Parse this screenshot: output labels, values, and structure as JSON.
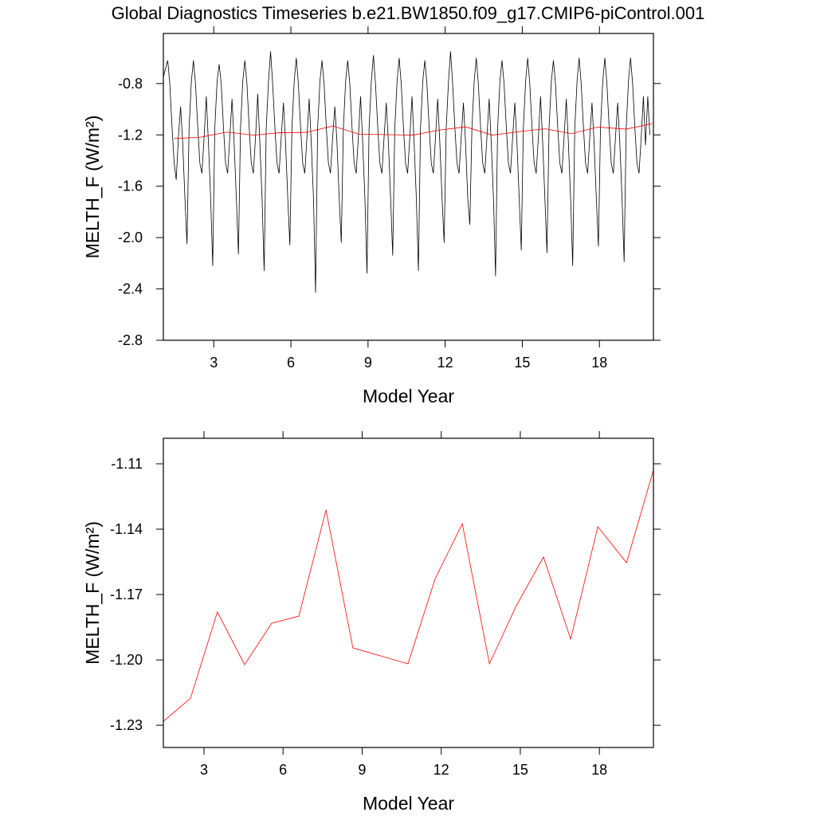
{
  "chart_data": [
    {
      "type": "line",
      "title": "Global Diagnostics Timeseries b.e21.BW1850.f09_g17.CMIP6-piControl.001",
      "x_label": "Model Year",
      "y_label": "MELTH_F (W/m²)",
      "xlim": [
        1.04,
        20.1
      ],
      "xticks": [
        3,
        6,
        9,
        12,
        15,
        18
      ],
      "ylim": [
        -2.8,
        -0.41
      ],
      "yticks": [
        -0.8,
        -1.2,
        -1.6,
        {
          "value": -2,
          "label": "-2.0"
        },
        -2.4,
        -2.8
      ],
      "series": [
        {
          "color": "#000000",
          "x": [
            1.04,
            1.13,
            1.21,
            1.29,
            1.38,
            1.46,
            1.54,
            1.63,
            1.71,
            1.79,
            1.88,
            1.96,
            2.04,
            2.13,
            2.21,
            2.29,
            2.38,
            2.46,
            2.54,
            2.63,
            2.71,
            2.79,
            2.88,
            2.96,
            3.04,
            3.13,
            3.21,
            3.29,
            3.38,
            3.46,
            3.54,
            3.63,
            3.71,
            3.79,
            3.88,
            3.96,
            4.04,
            4.13,
            4.21,
            4.29,
            4.38,
            4.46,
            4.54,
            4.63,
            4.71,
            4.79,
            4.88,
            4.96,
            5.04,
            5.13,
            5.21,
            5.29,
            5.38,
            5.46,
            5.54,
            5.63,
            5.71,
            5.79,
            5.88,
            5.96,
            6.04,
            6.13,
            6.21,
            6.29,
            6.38,
            6.46,
            6.54,
            6.63,
            6.71,
            6.79,
            6.88,
            6.96,
            7.04,
            7.13,
            7.21,
            7.29,
            7.38,
            7.46,
            7.54,
            7.63,
            7.71,
            7.79,
            7.88,
            7.96,
            8.04,
            8.13,
            8.21,
            8.29,
            8.38,
            8.46,
            8.54,
            8.63,
            8.71,
            8.79,
            8.88,
            8.96,
            9.04,
            9.13,
            9.21,
            9.29,
            9.38,
            9.46,
            9.54,
            9.63,
            9.71,
            9.79,
            9.88,
            9.96,
            10.04,
            10.13,
            10.21,
            10.29,
            10.38,
            10.46,
            10.54,
            10.63,
            10.71,
            10.79,
            10.88,
            10.96,
            11.04,
            11.13,
            11.21,
            11.29,
            11.38,
            11.46,
            11.54,
            11.63,
            11.71,
            11.79,
            11.88,
            11.96,
            12.04,
            12.13,
            12.21,
            12.29,
            12.38,
            12.46,
            12.54,
            12.63,
            12.71,
            12.79,
            12.88,
            12.96,
            13.04,
            13.13,
            13.21,
            13.29,
            13.38,
            13.46,
            13.54,
            13.63,
            13.71,
            13.79,
            13.88,
            13.96,
            14.04,
            14.13,
            14.21,
            14.29,
            14.38,
            14.46,
            14.54,
            14.63,
            14.71,
            14.79,
            14.88,
            14.96,
            15.04,
            15.13,
            15.21,
            15.29,
            15.38,
            15.46,
            15.54,
            15.63,
            15.71,
            15.79,
            15.88,
            15.96,
            16.04,
            16.13,
            16.21,
            16.29,
            16.38,
            16.46,
            16.54,
            16.63,
            16.71,
            16.79,
            16.88,
            16.96,
            17.04,
            17.13,
            17.21,
            17.29,
            17.38,
            17.46,
            17.54,
            17.63,
            17.71,
            17.79,
            17.88,
            17.96,
            18.04,
            18.13,
            18.21,
            18.29,
            18.38,
            18.46,
            18.54,
            18.63,
            18.71,
            18.79,
            18.88,
            18.96,
            19.04,
            19.13,
            19.21,
            19.29,
            19.38,
            19.46,
            19.54,
            19.63,
            19.71,
            19.79,
            19.88,
            19.96
          ],
          "values": [
            -0.75,
            -0.68,
            -0.62,
            -0.8,
            -1.15,
            -1.42,
            -1.55,
            -1.2,
            -0.98,
            -1.25,
            -1.7,
            -2.05,
            -1.15,
            -0.78,
            -0.62,
            -0.8,
            -1.15,
            -1.42,
            -1.5,
            -1.2,
            -0.9,
            -1.25,
            -1.7,
            -2.22,
            -1.15,
            -0.78,
            -0.65,
            -0.8,
            -1.15,
            -1.42,
            -1.5,
            -1.2,
            -0.92,
            -1.25,
            -1.7,
            -2.13,
            -1.15,
            -0.78,
            -0.62,
            -0.8,
            -1.15,
            -1.42,
            -1.5,
            -1.2,
            -0.88,
            -1.25,
            -1.7,
            -2.26,
            -1.15,
            -0.78,
            -0.55,
            -0.8,
            -1.15,
            -1.42,
            -1.5,
            -1.2,
            -0.95,
            -1.25,
            -1.7,
            -2.06,
            -1.15,
            -0.78,
            -0.6,
            -0.8,
            -1.15,
            -1.42,
            -1.5,
            -1.2,
            -0.92,
            -1.25,
            -1.7,
            -2.43,
            -1.15,
            -0.78,
            -0.62,
            -0.8,
            -1.15,
            -1.42,
            -1.5,
            -1.2,
            -0.98,
            -1.25,
            -1.7,
            -2.04,
            -1.15,
            -0.78,
            -0.62,
            -0.8,
            -1.15,
            -1.42,
            -1.5,
            -1.2,
            -0.9,
            -1.25,
            -1.7,
            -2.28,
            -1.15,
            -0.78,
            -0.58,
            -0.8,
            -1.15,
            -1.42,
            -1.5,
            -1.2,
            -0.95,
            -1.25,
            -1.7,
            -2.14,
            -1.15,
            -0.78,
            -0.6,
            -0.8,
            -1.15,
            -1.42,
            -1.5,
            -1.2,
            -0.9,
            -1.25,
            -1.7,
            -2.26,
            -1.15,
            -0.78,
            -0.62,
            -0.8,
            -1.15,
            -1.42,
            -1.5,
            -1.2,
            -0.92,
            -1.25,
            -1.7,
            -2.04,
            -1.15,
            -0.78,
            -0.55,
            -0.8,
            -1.15,
            -1.42,
            -1.5,
            -1.2,
            -0.95,
            -1.25,
            -1.7,
            -1.9,
            -1.15,
            -0.78,
            -0.6,
            -0.8,
            -1.15,
            -1.42,
            -1.5,
            -1.2,
            -0.92,
            -1.25,
            -1.7,
            -2.3,
            -1.15,
            -0.78,
            -0.62,
            -0.8,
            -1.15,
            -1.42,
            -1.5,
            -1.2,
            -0.95,
            -1.25,
            -1.7,
            -2.1,
            -1.15,
            -0.78,
            -0.6,
            -0.8,
            -1.15,
            -1.42,
            -1.5,
            -1.2,
            -0.9,
            -1.25,
            -1.7,
            -2.12,
            -1.15,
            -0.78,
            -0.62,
            -0.8,
            -1.15,
            -1.42,
            -1.5,
            -1.2,
            -0.92,
            -1.25,
            -1.7,
            -2.22,
            -1.15,
            -0.78,
            -0.6,
            -0.8,
            -1.15,
            -1.42,
            -1.5,
            -1.2,
            -0.95,
            -1.25,
            -1.7,
            -2.07,
            -1.15,
            -0.78,
            -0.6,
            -0.8,
            -1.15,
            -1.42,
            -1.5,
            -1.2,
            -0.95,
            -1.25,
            -1.7,
            -2.19,
            -1.15,
            -0.78,
            -0.6,
            -0.8,
            -1.15,
            -1.42,
            -1.5,
            -1.2,
            -0.9,
            -1.28,
            -0.9,
            -1.2
          ]
        },
        {
          "color": "#ff0000",
          "x": [
            1.46,
            2.49,
            3.51,
            4.54,
            5.57,
            6.6,
            7.63,
            8.65,
            10.74,
            11.77,
            12.8,
            13.83,
            14.85,
            15.88,
            16.91,
            17.94,
            19.03,
            20.05
          ],
          "values": [
            -1.2282,
            -1.2176,
            -1.178,
            -1.2022,
            -1.1832,
            -1.1799,
            -1.1312,
            -1.1945,
            -1.2018,
            -1.1627,
            -1.1375,
            -1.2018,
            -1.1751,
            -1.1528,
            -1.1905,
            -1.1389,
            -1.1554,
            -1.1129
          ]
        }
      ]
    },
    {
      "type": "line",
      "x_label": "Model Year",
      "y_label": "MELTH_F (W/m²)",
      "xlim": [
        1.46,
        20.05
      ],
      "xticks": [
        3,
        6,
        9,
        12,
        15,
        18
      ],
      "ylim": [
        -1.2402,
        -1.0983
      ],
      "yticks": [
        -1.11,
        -1.14,
        -1.17,
        {
          "value": -1.2,
          "label": "-1.20"
        },
        -1.23
      ],
      "series": [
        {
          "color": "#ff0000",
          "x": [
            1.46,
            2.49,
            3.51,
            4.54,
            5.57,
            6.6,
            7.63,
            8.65,
            10.74,
            11.77,
            12.8,
            13.83,
            14.85,
            15.88,
            16.91,
            17.94,
            19.03,
            20.05
          ],
          "values": [
            -1.2282,
            -1.2176,
            -1.178,
            -1.2022,
            -1.1832,
            -1.1799,
            -1.1312,
            -1.1945,
            -1.2018,
            -1.1627,
            -1.1375,
            -1.2018,
            -1.1751,
            -1.1528,
            -1.1905,
            -1.1389,
            -1.1554,
            -1.1129
          ]
        }
      ]
    }
  ]
}
